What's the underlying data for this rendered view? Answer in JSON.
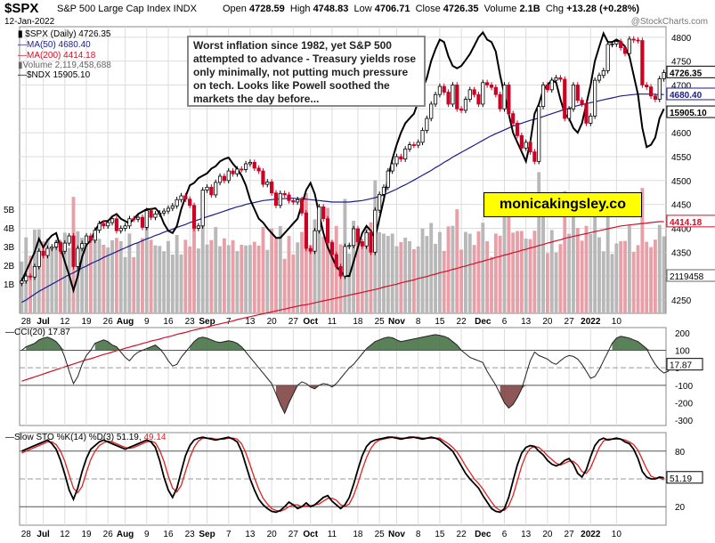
{
  "header": {
    "symbol": "$SPX",
    "index_name": "S&P 500 Large Cap Index  INDX",
    "date": "12-Jan-2022",
    "open_label": "Open",
    "open": "4728.59",
    "high_label": "High",
    "high": "4748.83",
    "low_label": "Low",
    "low": "4706.71",
    "close_label": "Close",
    "close": "4726.35",
    "volume_label": "Volume",
    "volume": "2.1B",
    "chg_label": "Chg",
    "chg": "+13.28 (+0.28%)",
    "watermark": "@StockCharts.com"
  },
  "legend": {
    "price": "$SPX (Daily) 4726.35",
    "ma50": "MA(50) 4680.40",
    "ma200": "MA(200) 4414.18",
    "volume": "Volume 2,119,458,688",
    "ndx": "$NDX 15905.10"
  },
  "note": "Worst inflation since 1982, yet S&P 500 attempted to advance - Treasury yields rose only minimally, not putting much pressure on tech. Looks like Powell soothed the markets the day before...",
  "brand": "monicakingsley.co",
  "indicators": {
    "cci_label": "CCI(20) 17.87",
    "sto_label": "Slow STO %K(14) %D(3) 51.19,",
    "sto_d": "49.14"
  },
  "colors": {
    "up_candle": "#000000",
    "down_candle": "#cc0022",
    "ma50": "#1c1c8c",
    "ma200": "#d01028",
    "ndx": "#000000",
    "volume_up": "#b8b8b8",
    "volume_down": "#e8a0a8",
    "cci_pos_fill": "#3d6b3d",
    "cci_neg_fill": "#7a3a3a",
    "stoch_k": "#000000",
    "stoch_d": "#e02020",
    "grid": "#dddddd"
  },
  "chart_data": [
    {
      "type": "candlestick",
      "title": "$SPX (Daily)",
      "price_axis": {
        "ticks": [
          4250,
          4300,
          4350,
          4400,
          4450,
          4500,
          4550,
          4600,
          4650,
          4700,
          4750,
          4800
        ]
      },
      "volume_axis": {
        "ticks": [
          "1B",
          "2B",
          "3B",
          "4B",
          "5B"
        ]
      },
      "x_tick_labels": [
        "28",
        "Jul",
        "12",
        "19",
        "26",
        "Aug",
        "9",
        "16",
        "23",
        "Sep",
        "7",
        "13",
        "20",
        "27",
        "Oct",
        "11",
        "18",
        "25",
        "Nov",
        "8",
        "15",
        "22",
        "Dec",
        "6",
        "13",
        "20",
        "27",
        "2022",
        "10"
      ],
      "last_values": {
        "price": "4726.35",
        "ma50": "4680.40",
        "ndx": "15905.10",
        "ma200": "4414.18",
        "volume": "2119458"
      },
      "close": [
        4290,
        4300,
        4298,
        4320,
        4352,
        4343,
        4358,
        4361,
        4370,
        4352,
        4369,
        4384,
        4320,
        4358,
        4368,
        4384,
        4375,
        4396,
        4410,
        4405,
        4412,
        4420,
        4395,
        4400,
        4405,
        4420,
        4419,
        4423,
        4402,
        4437,
        4423,
        4430,
        4432,
        4436,
        4442,
        4447,
        4460,
        4468,
        4461,
        4448,
        4400,
        4405,
        4480,
        4486,
        4470,
        4496,
        4509,
        4500,
        4520,
        4514,
        4524,
        4523,
        4535,
        4538,
        4526,
        4520,
        4492,
        4497,
        4474,
        4448,
        4473,
        4470,
        4458,
        4455,
        4460,
        4432,
        4358,
        4352,
        4395,
        4445,
        4420,
        4370,
        4345,
        4320,
        4300,
        4362,
        4364,
        4399,
        4372,
        4363,
        4391,
        4350,
        4438,
        4471,
        4486,
        4520,
        4535,
        4550,
        4545,
        4566,
        4575,
        4574,
        4580,
        4605,
        4630,
        4660,
        4680,
        4697,
        4685,
        4660,
        4700,
        4650,
        4647,
        4670,
        4690,
        4680,
        4660,
        4705,
        4700,
        4695,
        4680,
        4650,
        4700,
        4640,
        4620,
        4594,
        4568,
        4580,
        4560,
        4540,
        4655,
        4700,
        4690,
        4710,
        4715,
        4712,
        4630,
        4650,
        4700,
        4668,
        4660,
        4620,
        4635,
        4710,
        4720,
        4730,
        4785,
        4786,
        4791,
        4778,
        4766,
        4796,
        4794,
        4793,
        4700,
        4696,
        4677,
        4670,
        4713,
        4726
      ],
      "ma50": [
        4245,
        4250,
        4256,
        4262,
        4268,
        4273,
        4278,
        4283,
        4288,
        4293,
        4298,
        4303,
        4307,
        4312,
        4317,
        4321,
        4326,
        4330,
        4334,
        4339,
        4343,
        4347,
        4351,
        4355,
        4359,
        4363,
        4367,
        4370,
        4374,
        4378,
        4381,
        4385,
        4388,
        4392,
        4395,
        4398,
        4402,
        4405,
        4408,
        4412,
        4415,
        4418,
        4421,
        4424,
        4427,
        4430,
        4433,
        4436,
        4439,
        4442,
        4445,
        4447,
        4450,
        4452,
        4454,
        4456,
        4458,
        4459,
        4460,
        4461,
        4462,
        4462,
        4463,
        4463,
        4462,
        4462,
        4461,
        4460,
        4459,
        4458,
        4457,
        4456,
        4455,
        4455,
        4455,
        4455,
        4455,
        4456,
        4457,
        4458,
        4460,
        4462,
        4464,
        4467,
        4470,
        4474,
        4478,
        4482,
        4487,
        4491,
        4496,
        4501,
        4506,
        4511,
        4516,
        4521,
        4527,
        4532,
        4538,
        4543,
        4549,
        4554,
        4559,
        4564,
        4569,
        4574,
        4579,
        4584,
        4589,
        4594,
        4598,
        4602,
        4606,
        4610,
        4614,
        4617,
        4620,
        4623,
        4626,
        4628,
        4631,
        4634,
        4637,
        4640,
        4643,
        4646,
        4649,
        4651,
        4654,
        4657,
        4659,
        4661,
        4663,
        4665,
        4667,
        4669,
        4671,
        4673,
        4675,
        4677,
        4678,
        4679,
        4680,
        4681,
        4681,
        4681,
        4681,
        4680,
        4680,
        4680
      ],
      "ma200": [
        4080,
        4083,
        4086,
        4089,
        4092,
        4095,
        4098,
        4101,
        4104,
        4107,
        4110,
        4113,
        4116,
        4119,
        4122,
        4125,
        4127,
        4130,
        4133,
        4136,
        4138,
        4141,
        4144,
        4146,
        4149,
        4151,
        4154,
        4156,
        4159,
        4161,
        4164,
        4166,
        4168,
        4171,
        4173,
        4175,
        4178,
        4180,
        4182,
        4185,
        4187,
        4189,
        4191,
        4193,
        4196,
        4198,
        4200,
        4202,
        4204,
        4206,
        4209,
        4211,
        4213,
        4215,
        4217,
        4219,
        4221,
        4223,
        4225,
        4227,
        4229,
        4231,
        4233,
        4235,
        4237,
        4239,
        4240,
        4242,
        4244,
        4246,
        4248,
        4250,
        4252,
        4254,
        4256,
        4258,
        4260,
        4262,
        4264,
        4266,
        4268,
        4270,
        4272,
        4274,
        4277,
        4279,
        4281,
        4283,
        4286,
        4288,
        4290,
        4292,
        4295,
        4297,
        4299,
        4302,
        4304,
        4307,
        4309,
        4311,
        4314,
        4316,
        4319,
        4321,
        4324,
        4326,
        4329,
        4331,
        4334,
        4336,
        4339,
        4341,
        4344,
        4346,
        4349,
        4351,
        4354,
        4356,
        4359,
        4361,
        4364,
        4366,
        4369,
        4371,
        4374,
        4376,
        4379,
        4381,
        4383,
        4385,
        4387,
        4389,
        4391,
        4393,
        4395,
        4397,
        4399,
        4401,
        4403,
        4405,
        4406,
        4407,
        4408,
        4409,
        4410,
        4411,
        4412,
        4413,
        4414,
        4414
      ],
      "ndx": [
        4290,
        4310,
        4330,
        4350,
        4378,
        4360,
        4375,
        4385,
        4390,
        4360,
        4330,
        4302,
        4270,
        4300,
        4340,
        4365,
        4375,
        4395,
        4410,
        4415,
        4415,
        4425,
        4430,
        4420,
        4415,
        4410,
        4420,
        4430,
        4435,
        4440,
        4440,
        4442,
        4432,
        4410,
        4395,
        4390,
        4405,
        4440,
        4466,
        4490,
        4495,
        4505,
        4510,
        4515,
        4525,
        4530,
        4540,
        4545,
        4548,
        4535,
        4525,
        4510,
        4490,
        4460,
        4440,
        4420,
        4412,
        4400,
        4390,
        4380,
        4380,
        4390,
        4400,
        4410,
        4420,
        4450,
        4480,
        4495,
        4472,
        4430,
        4390,
        4360,
        4340,
        4320,
        4310,
        4300,
        4300,
        4330,
        4360,
        4390,
        4405,
        4395,
        4380,
        4420,
        4460,
        4505,
        4545,
        4575,
        4600,
        4620,
        4630,
        4640,
        4665,
        4690,
        4715,
        4750,
        4775,
        4795,
        4790,
        4760,
        4740,
        4735,
        4740,
        4752,
        4765,
        4782,
        4800,
        4810,
        4795,
        4790,
        4770,
        4720,
        4680,
        4640,
        4600,
        4580,
        4560,
        4540,
        4580,
        4640,
        4660,
        4690,
        4700,
        4710,
        4705,
        4670,
        4640,
        4630,
        4610,
        4600,
        4620,
        4660,
        4700,
        4750,
        4780,
        4808,
        4790,
        4790,
        4795,
        4790,
        4780,
        4760,
        4720,
        4680,
        4610,
        4570,
        4575,
        4590,
        4630,
        4650
      ]
    },
    {
      "type": "line",
      "title": "CCI(20)",
      "y_ticks": [
        -300,
        -200,
        -100,
        0,
        100,
        200
      ],
      "reference_lines": [
        100,
        0,
        -100
      ],
      "last_value": "17.87",
      "values": [
        100,
        120,
        130,
        140,
        160,
        170,
        175,
        165,
        150,
        120,
        60,
        -20,
        -90,
        -50,
        20,
        70,
        100,
        140,
        150,
        160,
        150,
        130,
        120,
        90,
        60,
        40,
        70,
        90,
        100,
        110,
        120,
        130,
        110,
        80,
        40,
        10,
        20,
        60,
        90,
        120,
        150,
        170,
        175,
        170,
        160,
        150,
        145,
        150,
        155,
        150,
        140,
        120,
        90,
        60,
        30,
        0,
        -30,
        -60,
        -90,
        -150,
        -210,
        -260,
        -200,
        -150,
        -100,
        -80,
        -90,
        -110,
        -120,
        -100,
        -90,
        -95,
        -110,
        -90,
        -60,
        -30,
        0,
        20,
        50,
        80,
        110,
        130,
        150,
        160,
        170,
        175,
        172,
        160,
        150,
        155,
        160,
        165,
        170,
        175,
        180,
        185,
        190,
        185,
        180,
        170,
        150,
        130,
        100,
        80,
        60,
        50,
        40,
        30,
        -20,
        -60,
        -100,
        -150,
        -200,
        -230,
        -210,
        -170,
        -120,
        -40,
        40,
        90,
        70,
        60,
        50,
        30,
        20,
        40,
        60,
        70,
        65,
        50,
        20,
        -20,
        -60,
        -50,
        -10,
        40,
        90,
        140,
        170,
        180,
        175,
        170,
        160,
        150,
        130,
        110,
        60,
        20,
        -10,
        -30,
        -20,
        17.87
      ]
    },
    {
      "type": "line",
      "title": "Slow STO %K(14) %D(3)",
      "y_ticks": [
        20,
        50,
        80
      ],
      "reference_lines": [
        80,
        50,
        20
      ],
      "last_values": {
        "k": "51.19",
        "d": "49.14"
      },
      "k_values": [
        80,
        82,
        84,
        86,
        88,
        90,
        92,
        88,
        82,
        70,
        55,
        38,
        28,
        40,
        58,
        72,
        82,
        86,
        90,
        92,
        90,
        88,
        86,
        84,
        82,
        84,
        86,
        88,
        90,
        92,
        90,
        84,
        70,
        52,
        38,
        30,
        40,
        58,
        75,
        86,
        92,
        94,
        95,
        94,
        93,
        92,
        93,
        94,
        95,
        93,
        90,
        80,
        65,
        50,
        38,
        28,
        22,
        18,
        15,
        14,
        16,
        20,
        25,
        22,
        18,
        20,
        24,
        20,
        22,
        26,
        30,
        32,
        26,
        22,
        18,
        22,
        30,
        44,
        60,
        75,
        85,
        90,
        92,
        93,
        94,
        95,
        95,
        94,
        93,
        94,
        95,
        95,
        94,
        93,
        94,
        95,
        94,
        92,
        88,
        84,
        80,
        72,
        64,
        56,
        50,
        45,
        40,
        32,
        25,
        18,
        15,
        14,
        18,
        30,
        48,
        65,
        78,
        84,
        86,
        85,
        80,
        76,
        70,
        66,
        64,
        66,
        70,
        72,
        66,
        56,
        52,
        60,
        74,
        86,
        92,
        94,
        92,
        93,
        94,
        93,
        90,
        88,
        82,
        72,
        58,
        52,
        50,
        50,
        52,
        51.19
      ],
      "d_values": [
        78,
        80,
        82,
        84,
        86,
        88,
        90,
        90,
        87,
        80,
        69,
        54,
        40,
        35,
        42,
        57,
        71,
        80,
        86,
        89,
        91,
        90,
        88,
        86,
        84,
        83,
        84,
        86,
        88,
        90,
        91,
        89,
        81,
        69,
        53,
        40,
        36,
        43,
        58,
        73,
        84,
        91,
        94,
        94,
        94,
        93,
        93,
        93,
        94,
        94,
        93,
        88,
        78,
        65,
        51,
        39,
        29,
        23,
        18,
        16,
        15,
        17,
        20,
        22,
        22,
        20,
        21,
        21,
        22,
        23,
        26,
        29,
        29,
        27,
        22,
        20,
        23,
        32,
        45,
        60,
        73,
        83,
        89,
        92,
        93,
        94,
        95,
        95,
        94,
        94,
        94,
        95,
        95,
        94,
        94,
        94,
        94,
        94,
        91,
        88,
        84,
        79,
        72,
        64,
        57,
        50,
        45,
        39,
        32,
        25,
        19,
        16,
        16,
        21,
        32,
        48,
        64,
        76,
        83,
        85,
        84,
        80,
        75,
        71,
        67,
        65,
        67,
        69,
        69,
        65,
        58,
        56,
        62,
        73,
        84,
        91,
        93,
        93,
        93,
        93,
        92,
        90,
        87,
        81,
        71,
        61,
        53,
        51,
        51,
        49.14
      ]
    }
  ]
}
